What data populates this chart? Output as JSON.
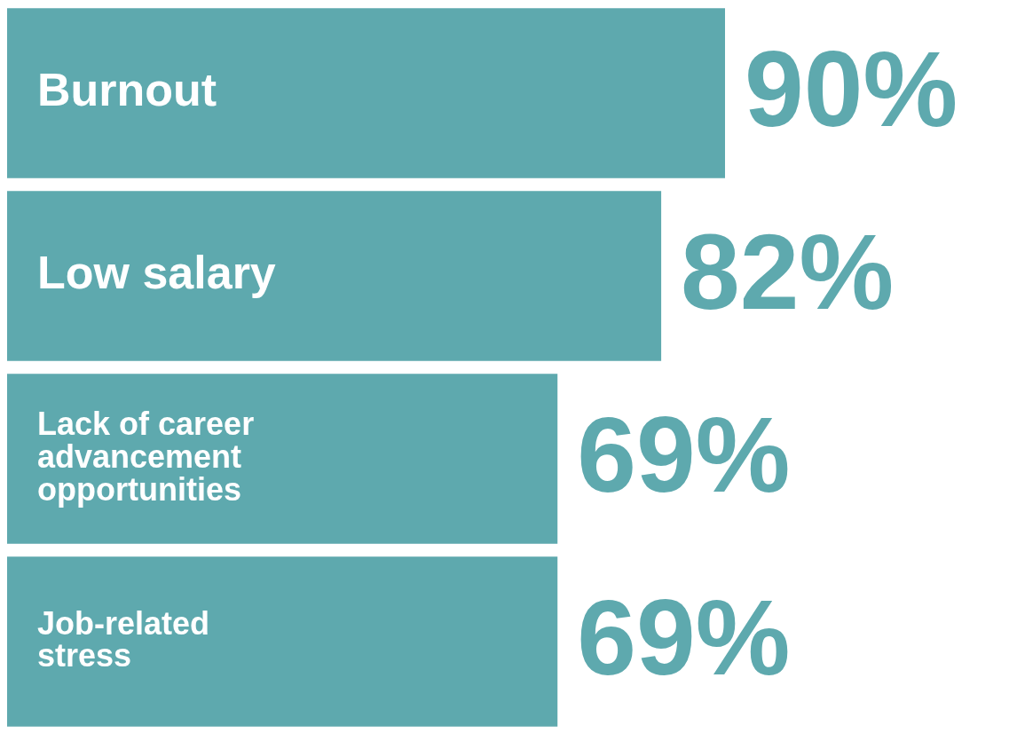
{
  "chart_data": {
    "type": "bar",
    "orientation": "horizontal",
    "categories": [
      "Burnout",
      "Low salary",
      "Lack of career advancement opportunities",
      "Job-related stress"
    ],
    "values": [
      90,
      82,
      69,
      69
    ],
    "color": "#5ea9ae",
    "value_labels": [
      "90%",
      "82%",
      "69%",
      "69%"
    ],
    "legend": false
  }
}
